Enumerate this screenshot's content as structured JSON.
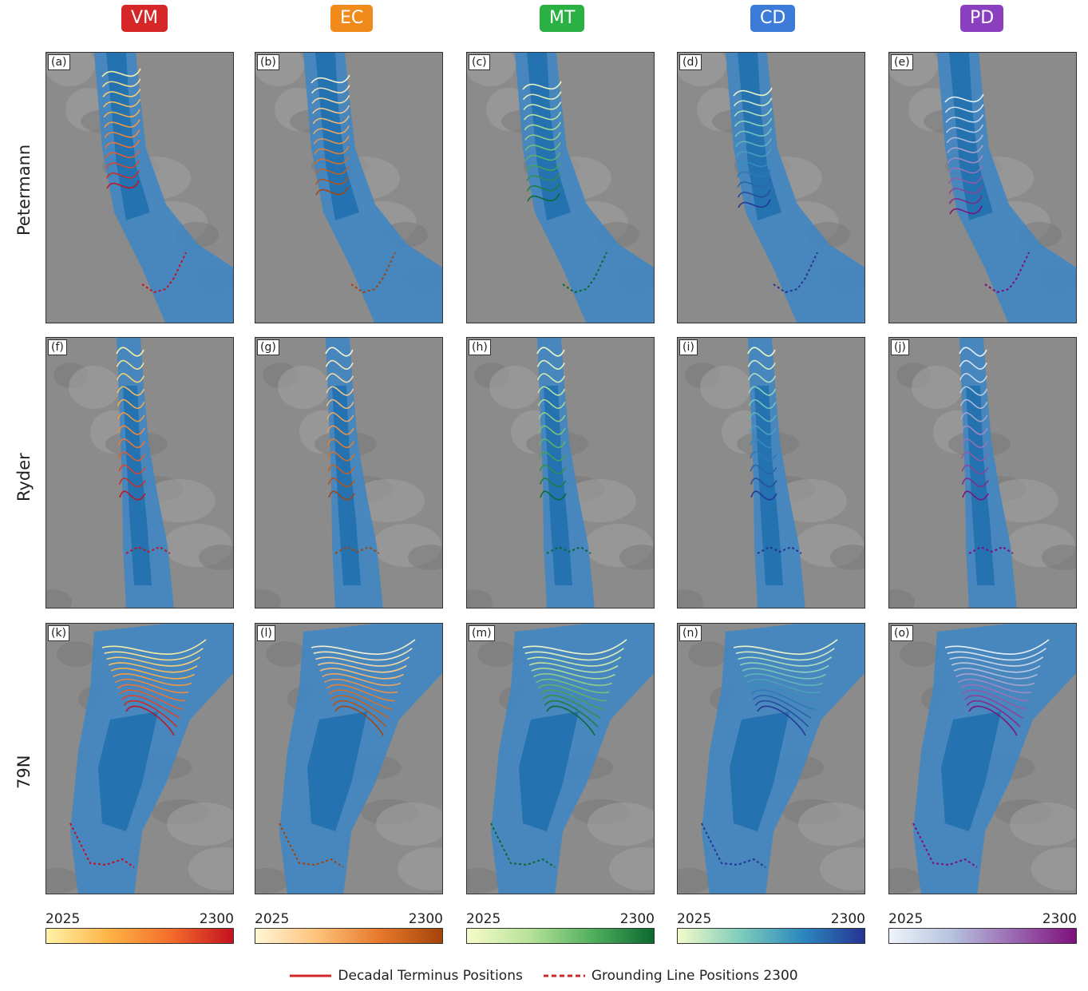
{
  "columns": [
    {
      "code": "VM",
      "color": "#d62728",
      "ramp": [
        "#fff3a8",
        "#fdb446",
        "#f46d2b",
        "#c4111f"
      ]
    },
    {
      "code": "EC",
      "color": "#f08a1a",
      "ramp": [
        "#fff6d5",
        "#fdc27a",
        "#e6782a",
        "#a4440a"
      ]
    },
    {
      "code": "MT",
      "color": "#2bb043",
      "ramp": [
        "#f7fbc9",
        "#b7e39a",
        "#52b05f",
        "#0a6a2f"
      ]
    },
    {
      "code": "CD",
      "color": "#3d7bd9",
      "ramp": [
        "#f4fbc8",
        "#7fcdbb",
        "#2c88bd",
        "#253494"
      ]
    },
    {
      "code": "PD",
      "color": "#8a3fbf",
      "ramp": [
        "#eef4fa",
        "#b6c3de",
        "#9b68b2",
        "#7e0f7a"
      ]
    }
  ],
  "rows": [
    {
      "name": "Petermann",
      "panels": [
        "(a)",
        "(b)",
        "(c)",
        "(d)",
        "(e)"
      ]
    },
    {
      "name": "Ryder",
      "panels": [
        "(f)",
        "(g)",
        "(h)",
        "(i)",
        "(j)"
      ]
    },
    {
      "name": "79N",
      "panels": [
        "(k)",
        "(l)",
        "(m)",
        "(n)",
        "(o)"
      ]
    }
  ],
  "colorbar": {
    "start": "2025",
    "end": "2300"
  },
  "legend": {
    "terminus_label": "Decadal Terminus Positions",
    "grounding_label": "Grounding Line Positions 2300"
  },
  "colors": {
    "ocean": "#3f86c2",
    "ocean_deep": "#1f6fae",
    "land": "#8b8b8b",
    "land_light": "#a3a3a3"
  }
}
